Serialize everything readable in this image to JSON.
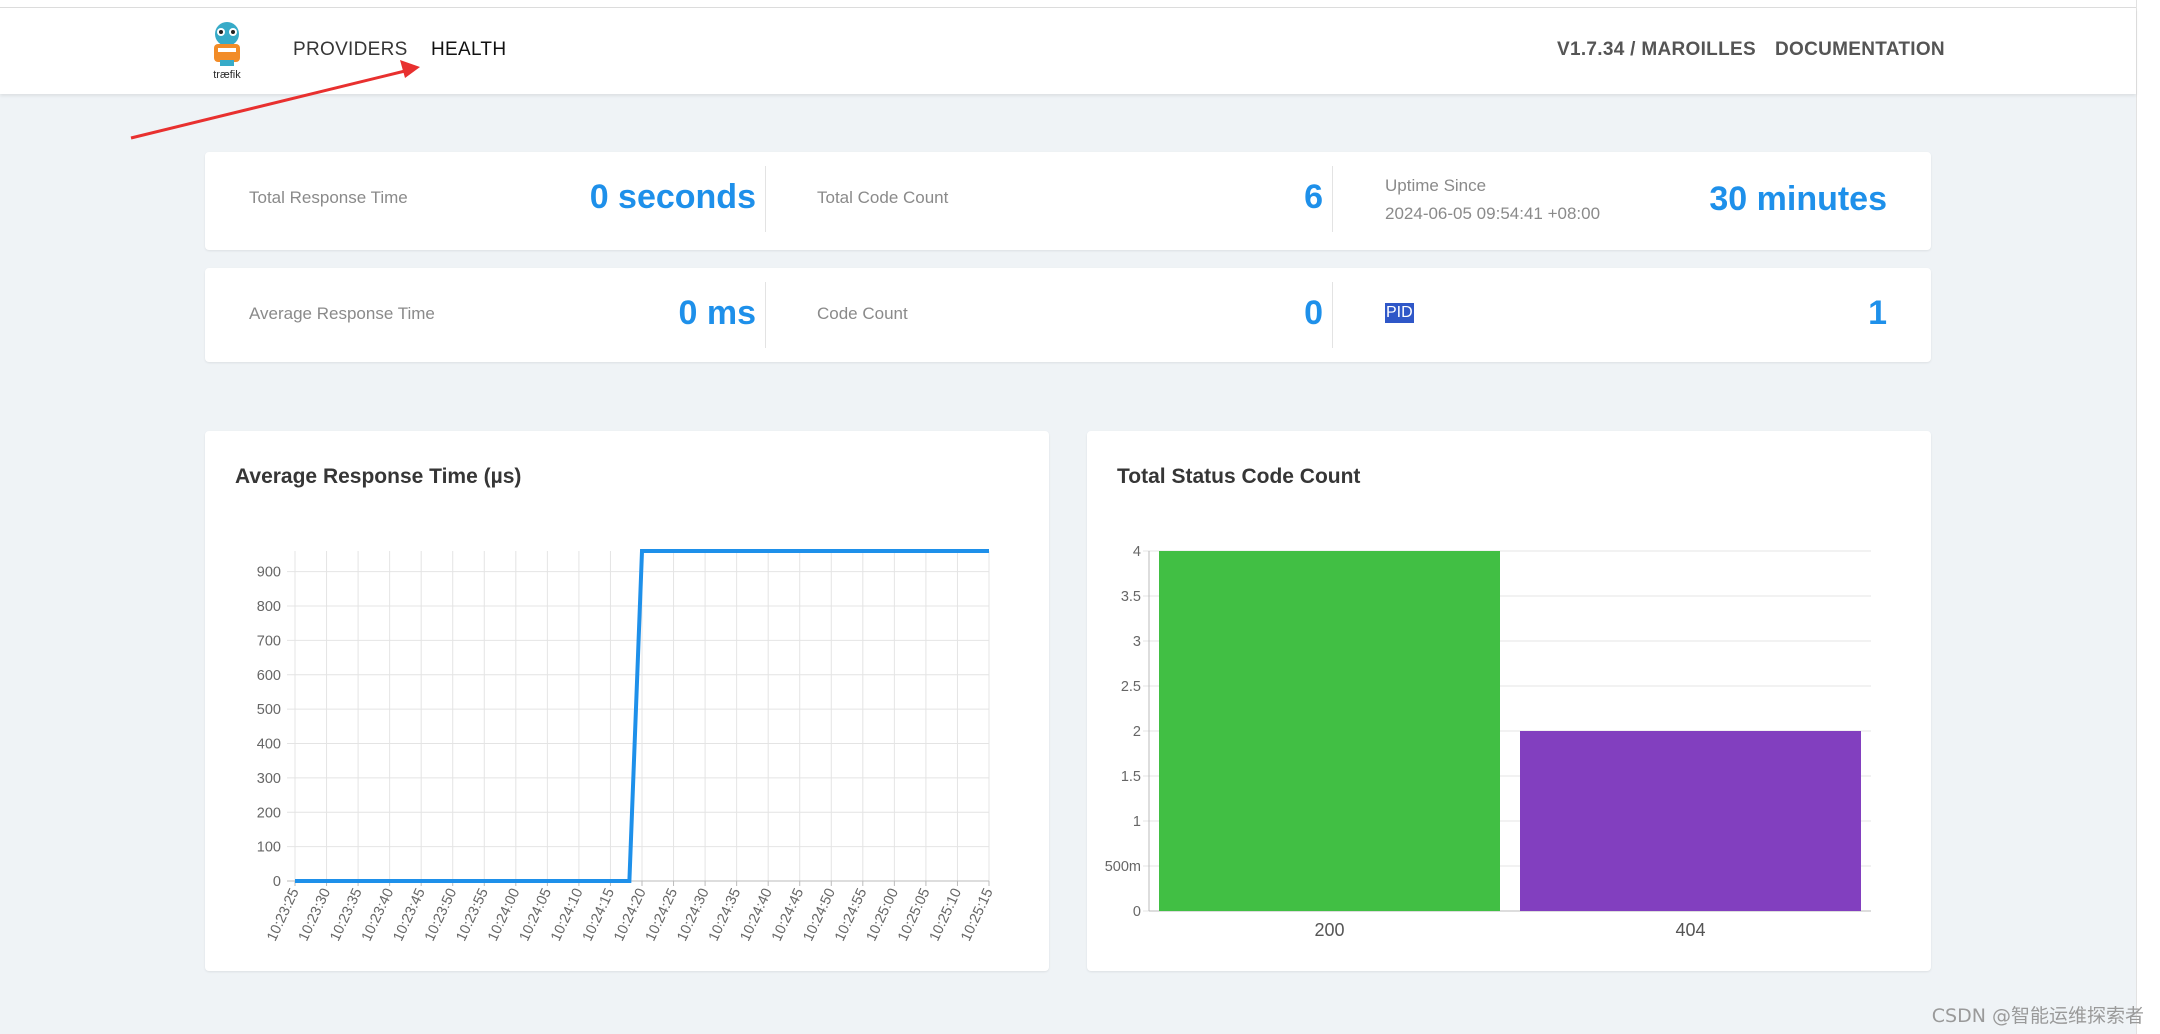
{
  "nav": {
    "links": [
      {
        "label": "PROVIDERS"
      },
      {
        "label": "HEALTH"
      }
    ],
    "version": "V1.7.34 / MAROILLES",
    "docs": "DOCUMENTATION",
    "logo_text": "træfik"
  },
  "stats": {
    "total_response_time": {
      "label": "Total Response Time",
      "value": "0 seconds"
    },
    "total_code_count": {
      "label": "Total Code Count",
      "value": "6"
    },
    "uptime": {
      "label": "Uptime Since",
      "since": "2024-06-05 09:54:41 +08:00",
      "value": "30 minutes"
    },
    "avg_response_time": {
      "label": "Average Response Time",
      "value": "0 ms"
    },
    "code_count": {
      "label": "Code Count",
      "value": "0"
    },
    "pid": {
      "label": "PID",
      "value": "1"
    }
  },
  "colors": {
    "accent": "#1e90ea",
    "line": "#1e90ea",
    "bar_200": "#41bf44",
    "bar_404": "#823fbf"
  },
  "chart_data": [
    {
      "type": "line",
      "title": "Average Response Time (µs)",
      "x": [
        "10:23:25",
        "10:23:30",
        "10:23:35",
        "10:23:40",
        "10:23:45",
        "10:23:50",
        "10:23:55",
        "10:24:00",
        "10:24:05",
        "10:24:10",
        "10:24:15",
        "10:24:20",
        "10:24:25",
        "10:24:30",
        "10:24:35",
        "10:24:40",
        "10:24:45",
        "10:24:50",
        "10:24:55",
        "10:25:00",
        "10:25:05",
        "10:25:10",
        "10:25:15"
      ],
      "y_ticks": [
        0,
        100,
        200,
        300,
        400,
        500,
        600,
        700,
        800,
        900
      ],
      "ylim": [
        0,
        960
      ],
      "series": [
        {
          "points": [
            {
              "x": "10:23:25",
              "y": 0
            },
            {
              "x": "10:24:18",
              "y": 0
            },
            {
              "x": "10:24:20",
              "y": 960
            },
            {
              "x": "10:25:15",
              "y": 960
            }
          ]
        }
      ],
      "grid": true
    },
    {
      "type": "bar",
      "title": "Total Status Code Count",
      "categories": [
        "200",
        "404"
      ],
      "values": [
        4,
        2
      ],
      "y_ticks": [
        "0",
        "500m",
        "1",
        "1.5",
        "2",
        "2.5",
        "3",
        "3.5",
        "4"
      ],
      "ylim": [
        0,
        4
      ],
      "grid": true
    }
  ],
  "watermark": "CSDN @智能运维探索者"
}
